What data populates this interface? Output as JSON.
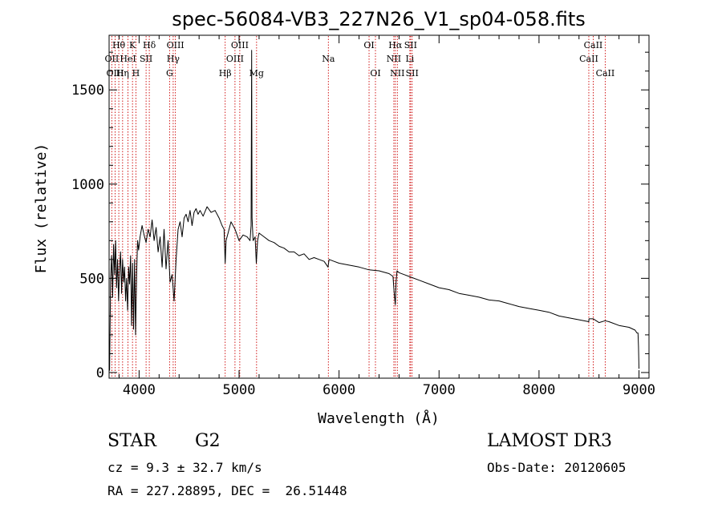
{
  "chart_data": {
    "type": "line",
    "title": "spec-56084-VB3_227N26_V1_sp04-058.fits",
    "xlabel": "Wavelength (Å)",
    "ylabel": "Flux (relative)",
    "xlim": [
      3700,
      9100
    ],
    "ylim": [
      -30,
      1790
    ],
    "x_ticks": [
      4000,
      5000,
      6000,
      7000,
      8000,
      9000
    ],
    "x_tick_labels": [
      "4000",
      "5000",
      "6000",
      "7000",
      "8000",
      "9000"
    ],
    "y_ticks": [
      0,
      500,
      1000,
      1500
    ],
    "y_tick_labels": [
      "0",
      "500",
      "1000",
      "1500"
    ],
    "grid": false,
    "series": [
      {
        "name": "flux",
        "color": "#000000",
        "x": [
          3705,
          3715,
          3725,
          3735,
          3745,
          3755,
          3765,
          3775,
          3785,
          3795,
          3805,
          3815,
          3825,
          3835,
          3845,
          3855,
          3865,
          3875,
          3885,
          3895,
          3905,
          3915,
          3925,
          3935,
          3945,
          3955,
          3965,
          3975,
          3985,
          3995,
          4010,
          4030,
          4050,
          4070,
          4090,
          4110,
          4130,
          4150,
          4170,
          4190,
          4210,
          4230,
          4250,
          4270,
          4290,
          4310,
          4330,
          4350,
          4370,
          4390,
          4410,
          4430,
          4450,
          4470,
          4490,
          4510,
          4530,
          4550,
          4570,
          4590,
          4610,
          4640,
          4680,
          4720,
          4760,
          4800,
          4830,
          4850,
          4861,
          4870,
          4890,
          4920,
          4960,
          5000,
          5040,
          5080,
          5110,
          5120,
          5126,
          5130,
          5140,
          5160,
          5172,
          5185,
          5200,
          5250,
          5300,
          5350,
          5400,
          5450,
          5500,
          5550,
          5600,
          5650,
          5700,
          5750,
          5800,
          5850,
          5890,
          5900,
          5950,
          6000,
          6100,
          6200,
          6300,
          6400,
          6500,
          6540,
          6550,
          6563,
          6570,
          6580,
          6600,
          6650,
          6700,
          6800,
          6900,
          7000,
          7100,
          7200,
          7300,
          7400,
          7500,
          7600,
          7700,
          7800,
          7900,
          8000,
          8100,
          8200,
          8300,
          8400,
          8498,
          8500,
          8542,
          8600,
          8662,
          8700,
          8800,
          8900,
          8960,
          8980,
          8990,
          8995,
          9000
        ],
        "values": [
          10,
          500,
          620,
          400,
          680,
          520,
          700,
          450,
          600,
          380,
          550,
          640,
          420,
          600,
          480,
          560,
          380,
          500,
          330,
          560,
          470,
          620,
          250,
          580,
          230,
          600,
          200,
          520,
          700,
          650,
          720,
          780,
          730,
          690,
          760,
          720,
          810,
          700,
          770,
          640,
          720,
          560,
          760,
          550,
          700,
          480,
          520,
          380,
          600,
          760,
          800,
          720,
          820,
          840,
          800,
          860,
          780,
          850,
          870,
          840,
          860,
          830,
          880,
          850,
          860,
          820,
          780,
          760,
          580,
          700,
          740,
          800,
          760,
          700,
          730,
          720,
          700,
          780,
          1710,
          820,
          700,
          720,
          580,
          700,
          740,
          720,
          700,
          690,
          670,
          660,
          640,
          640,
          620,
          630,
          600,
          610,
          600,
          590,
          560,
          600,
          590,
          580,
          570,
          560,
          545,
          540,
          525,
          510,
          430,
          360,
          480,
          540,
          530,
          520,
          510,
          490,
          470,
          450,
          440,
          420,
          410,
          400,
          385,
          380,
          365,
          350,
          340,
          330,
          320,
          300,
          290,
          280,
          270,
          285,
          285,
          265,
          275,
          270,
          250,
          240,
          225,
          210,
          210,
          140,
          20
        ]
      }
    ],
    "lines": [
      {
        "label": "Hθ",
        "x": 3797,
        "row": 1
      },
      {
        "label": "OII",
        "x": 3727,
        "row": 2
      },
      {
        "label": "OIII",
        "x": 3760,
        "row": 3
      },
      {
        "label": "Hη",
        "x": 3835,
        "row": 3
      },
      {
        "label": "HeI",
        "x": 3889,
        "row": 2
      },
      {
        "label": "K",
        "x": 3934,
        "row": 1
      },
      {
        "label": "SII",
        "x": 4070,
        "row": 2
      },
      {
        "label": "H",
        "x": 3968,
        "row": 3
      },
      {
        "label": "Hδ",
        "x": 4102,
        "row": 1
      },
      {
        "label": "OIII",
        "x": 4363,
        "row": 1
      },
      {
        "label": "Hγ",
        "x": 4341,
        "row": 2
      },
      {
        "label": "G",
        "x": 4305,
        "row": 3
      },
      {
        "label": "Hβ",
        "x": 4861,
        "row": 3
      },
      {
        "label": "OIII",
        "x": 5007,
        "row": 1
      },
      {
        "label": "OIII",
        "x": 4959,
        "row": 2
      },
      {
        "label": "Mg",
        "x": 5175,
        "row": 3
      },
      {
        "label": "Na",
        "x": 5893,
        "row": 2
      },
      {
        "label": "OI",
        "x": 6300,
        "row": 1
      },
      {
        "label": "OI",
        "x": 6364,
        "row": 3
      },
      {
        "label": "Hα",
        "x": 6563,
        "row": 1
      },
      {
        "label": "NII",
        "x": 6548,
        "row": 2
      },
      {
        "label": "NII",
        "x": 6583,
        "row": 3
      },
      {
        "label": "SII",
        "x": 6716,
        "row": 1
      },
      {
        "label": "Li",
        "x": 6708,
        "row": 2
      },
      {
        "label": "SII",
        "x": 6731,
        "row": 3
      },
      {
        "label": "CaII",
        "x": 8542,
        "row": 1
      },
      {
        "label": "CaII",
        "x": 8498,
        "row": 2
      },
      {
        "label": "CaII",
        "x": 8662,
        "row": 3
      }
    ],
    "line_marker_color": "#cc0000"
  },
  "footer": {
    "object_class": "STAR",
    "subclass": "G2",
    "survey": "LAMOST DR3",
    "redshift": "cz = 9.3 ± 32.7 km/s",
    "obs_date": "Obs-Date: 20120605",
    "coords": "RA = 227.28895, DEC =  26.51448"
  }
}
